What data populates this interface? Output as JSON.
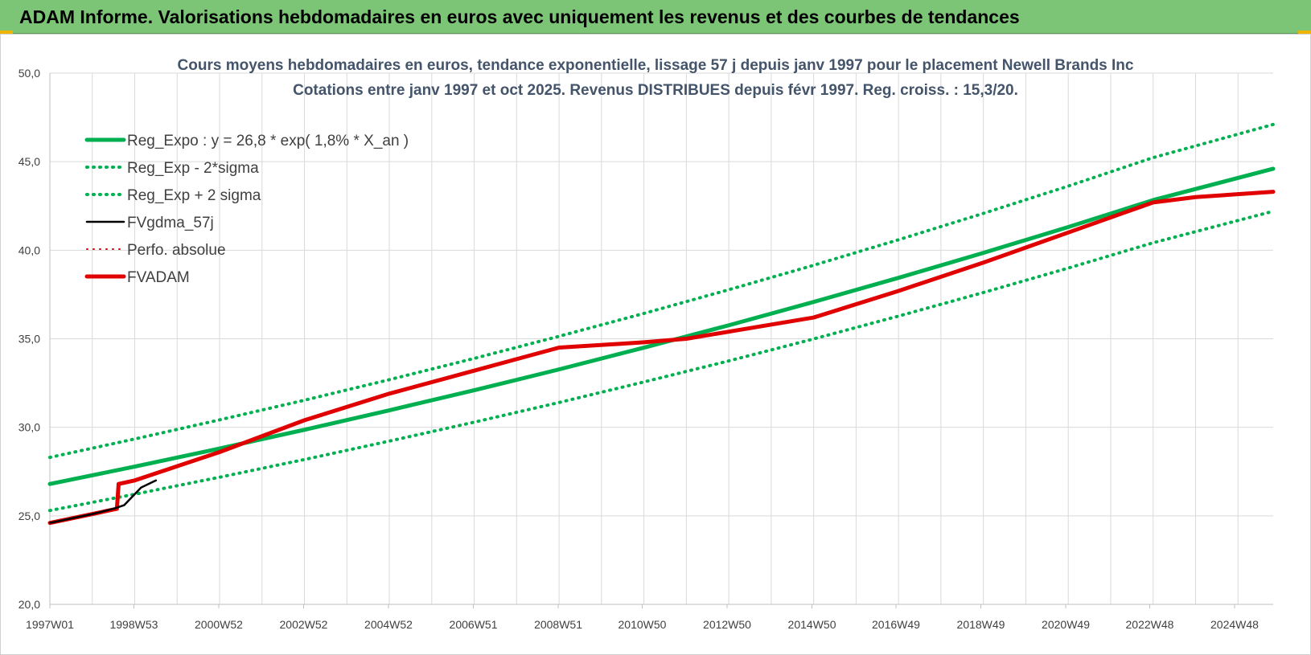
{
  "banner": {
    "title": "ADAM Informe. Valorisations hebdomadaires en euros avec uniquement les revenus et des courbes de tendances",
    "background": "#7cc576"
  },
  "chart_data": {
    "type": "line",
    "title_lines": [
      "Cours moyens hebdomadaires en euros, tendance exponentielle, lissage 57 j depuis janv 1997 pour le placement Newell Brands Inc",
      "Cotations entre janv 1997 et oct 2025. Revenus DISTRIBUES depuis févr 1997. Reg. croiss. : 15,3/20."
    ],
    "xlabel": "",
    "ylabel": "",
    "x_range": [
      1997.0,
      2025.83
    ],
    "ylim": [
      20,
      50
    ],
    "y_ticks": [
      20,
      25,
      30,
      35,
      40,
      45,
      50
    ],
    "y_tick_labels": [
      "20,0",
      "25,0",
      "30,0",
      "35,0",
      "40,0",
      "45,0",
      "50,0"
    ],
    "x_ticks": [
      1997.0,
      1998.98,
      2000.98,
      2002.98,
      2004.98,
      2006.98,
      2008.98,
      2010.96,
      2012.96,
      2014.96,
      2016.94,
      2018.94,
      2020.94,
      2022.92,
      2024.92
    ],
    "x_tick_labels": [
      "1997W01",
      "1998W53",
      "2000W52",
      "2002W52",
      "2004W52",
      "2006W51",
      "2008W51",
      "2010W50",
      "2012W50",
      "2014W50",
      "2016W49",
      "2018W49",
      "2020W49",
      "2022W48",
      "2024W48"
    ],
    "grid": true,
    "legend_position": "top-left",
    "series": [
      {
        "name": "Reg_Expo : y = 26,8 * exp( 1,8% *  X_an )",
        "color": "#00b050",
        "style": "solid",
        "x": [
          1997.0,
          1999.0,
          2001.0,
          2003.0,
          2005.0,
          2007.0,
          2009.0,
          2011.0,
          2013.0,
          2015.0,
          2017.0,
          2019.0,
          2021.0,
          2023.0,
          2025.83
        ],
        "y": [
          26.8,
          27.78,
          28.8,
          29.86,
          30.96,
          32.09,
          33.27,
          34.5,
          35.76,
          37.08,
          38.44,
          39.85,
          41.31,
          42.83,
          44.6
        ]
      },
      {
        "name": "Reg_Exp - 2*sigma",
        "color": "#00b050",
        "style": "dotted",
        "x": [
          1997.0,
          1999.0,
          2001.0,
          2003.0,
          2005.0,
          2007.0,
          2009.0,
          2011.0,
          2013.0,
          2015.0,
          2017.0,
          2019.0,
          2021.0,
          2023.0,
          2025.83
        ],
        "y": [
          25.3,
          26.22,
          27.18,
          28.18,
          29.22,
          30.29,
          31.4,
          32.56,
          33.75,
          34.99,
          36.28,
          37.61,
          38.99,
          40.42,
          42.2
        ]
      },
      {
        "name": "Reg_Exp + 2 sigma",
        "color": "#00b050",
        "style": "dotted",
        "x": [
          1997.0,
          1999.0,
          2001.0,
          2003.0,
          2005.0,
          2007.0,
          2009.0,
          2011.0,
          2013.0,
          2015.0,
          2017.0,
          2019.0,
          2021.0,
          2023.0,
          2025.83
        ],
        "y": [
          28.3,
          29.34,
          30.42,
          31.53,
          32.69,
          33.89,
          35.14,
          36.43,
          37.77,
          39.15,
          40.59,
          42.08,
          43.62,
          45.23,
          47.1
        ]
      },
      {
        "name": "FVgdma_57j",
        "color": "#000000",
        "style": "solid",
        "x": [
          1997.0,
          1997.5,
          1998.0,
          1998.5,
          1998.75,
          1998.95,
          1999.15,
          1999.5
        ],
        "y": [
          24.6,
          24.85,
          25.1,
          25.4,
          25.6,
          26.1,
          26.6,
          27.0
        ]
      },
      {
        "name": "Perfo. absolue",
        "color": "#e00000",
        "style": "dotted",
        "x": [
          1997.0,
          1998.0,
          1998.58,
          1998.62,
          1999.0,
          2001.0,
          2003.0,
          2005.0,
          2007.0,
          2009.0,
          2011.0,
          2012.0,
          2013.0,
          2015.0,
          2017.0,
          2019.0,
          2021.0,
          2023.0,
          2024.0,
          2025.83
        ],
        "y": [
          24.6,
          25.1,
          25.4,
          26.8,
          27.0,
          28.6,
          30.4,
          31.9,
          33.2,
          34.5,
          34.8,
          35.0,
          35.4,
          36.2,
          37.7,
          39.3,
          41.0,
          42.7,
          43.0,
          43.3
        ]
      },
      {
        "name": "FVADAM",
        "color": "#e00000",
        "style": "solid",
        "x": [
          1997.0,
          1998.0,
          1998.58,
          1998.62,
          1999.0,
          2001.0,
          2003.0,
          2005.0,
          2007.0,
          2009.0,
          2011.0,
          2012.0,
          2013.0,
          2015.0,
          2017.0,
          2019.0,
          2021.0,
          2023.0,
          2024.0,
          2025.83
        ],
        "y": [
          24.6,
          25.1,
          25.4,
          26.8,
          27.0,
          28.6,
          30.4,
          31.9,
          33.2,
          34.5,
          34.8,
          35.0,
          35.4,
          36.2,
          37.7,
          39.3,
          41.0,
          42.7,
          43.0,
          43.3
        ]
      }
    ]
  }
}
